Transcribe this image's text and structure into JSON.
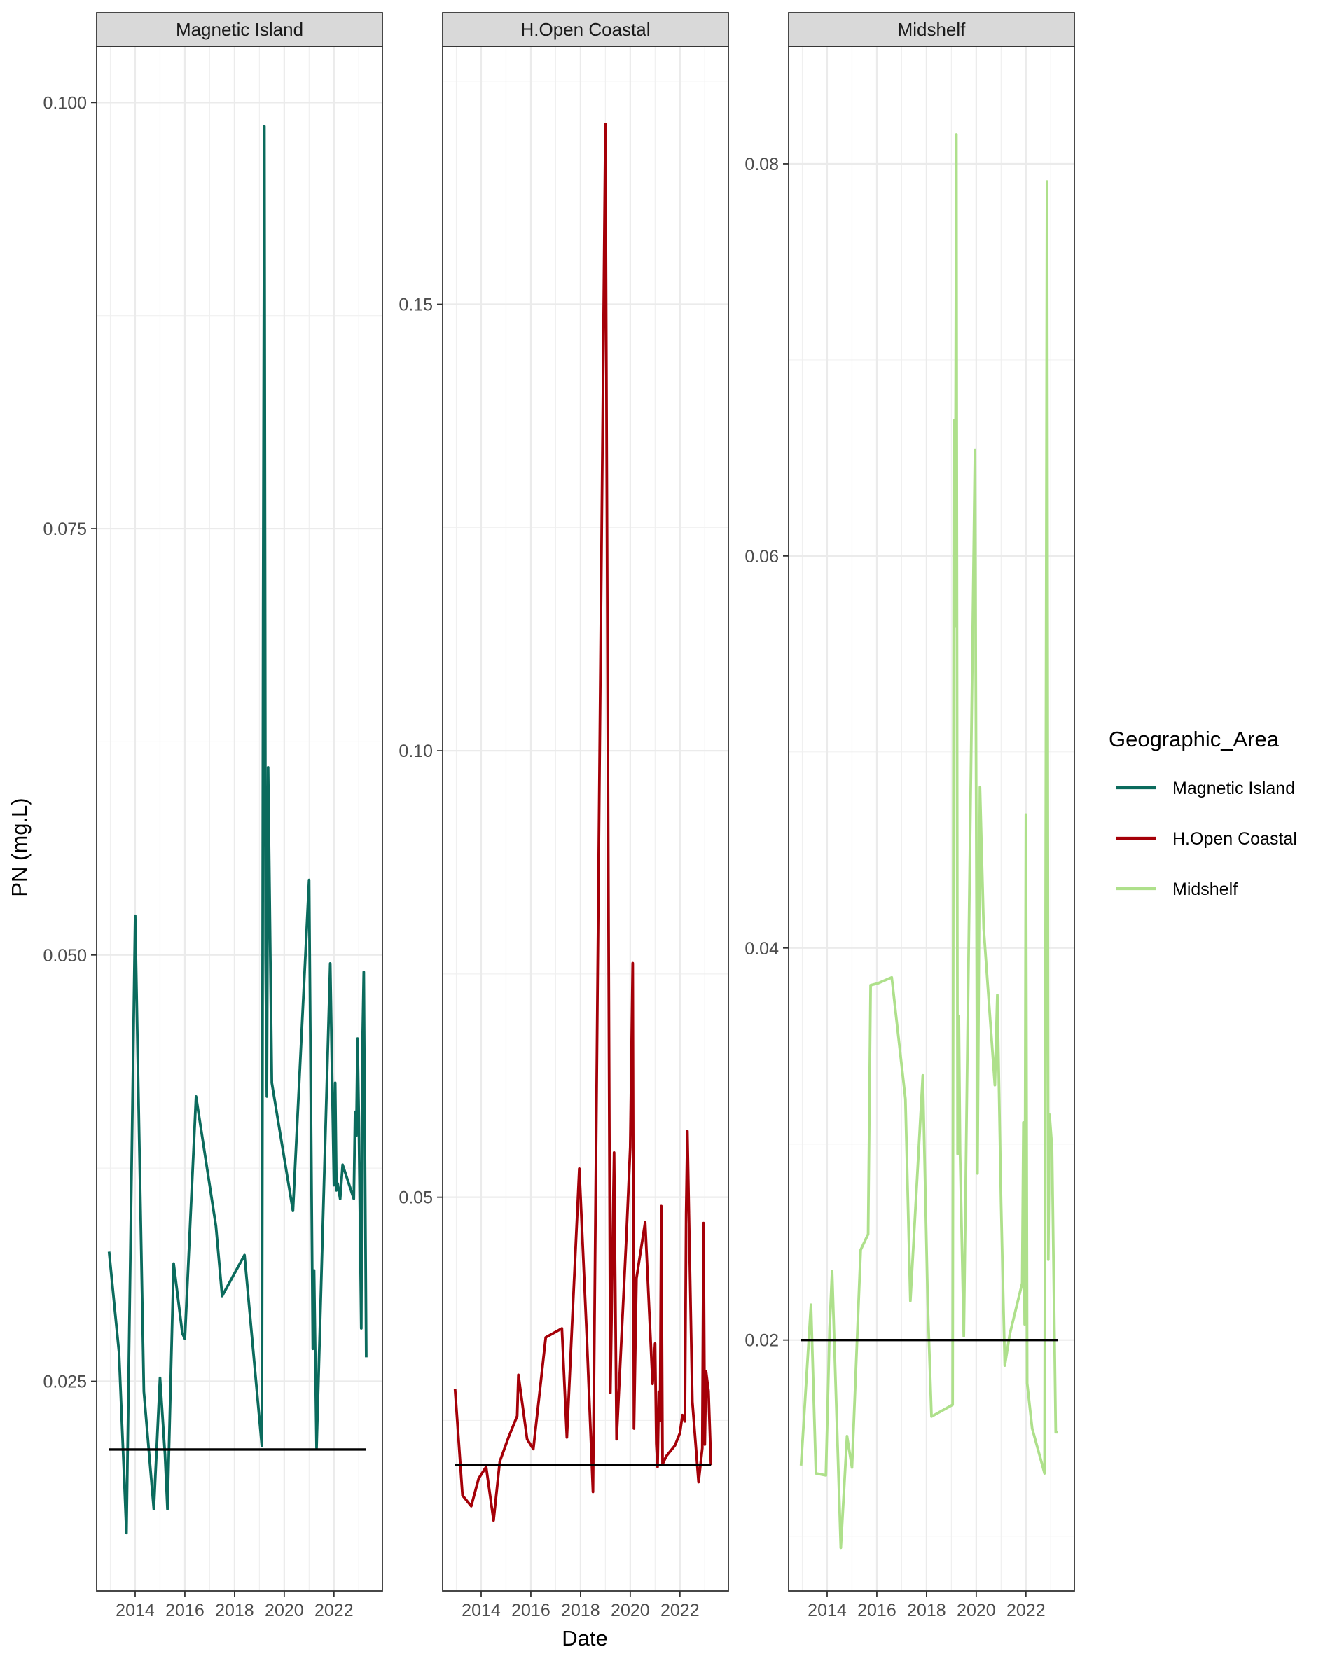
{
  "chart_data": {
    "type": "line",
    "xlabel": "Date",
    "ylabel": "PN (mg.L)",
    "legend": {
      "title": "Geographic_Area",
      "position": "right",
      "entries": [
        {
          "label": "Magnetic Island",
          "color": "#0B6B5D"
        },
        {
          "label": "H.Open Coastal",
          "color": "#A50008"
        },
        {
          "label": "Midshelf",
          "color": "#AEE08B"
        }
      ]
    },
    "grid": true,
    "panels": [
      {
        "strip": "Magnetic Island",
        "color": "#0B6B5D",
        "xlim": [
          2012.45,
          2023.95
        ],
        "ylim": [
          0.0127,
          0.1033
        ],
        "xticks": [
          2014,
          2016,
          2018,
          2020,
          2022
        ],
        "yticks": [
          0.025,
          0.05,
          0.075,
          0.1
        ],
        "ytick_labels": [
          "0.025",
          "0.050",
          "0.075",
          "0.100"
        ],
        "threshold": 0.021,
        "x": [
          2012.95,
          2013.35,
          2013.65,
          2014.0,
          2014.35,
          2014.75,
          2015.0,
          2015.2,
          2015.3,
          2015.55,
          2015.9,
          2016.0,
          2016.45,
          2017.25,
          2017.5,
          2018.4,
          2019.1,
          2019.15,
          2019.2,
          2019.25,
          2019.3,
          2019.35,
          2019.5,
          2020.35,
          2021.0,
          2021.15,
          2021.2,
          2021.3,
          2021.85,
          2022.0,
          2022.05,
          2022.1,
          2022.15,
          2022.25,
          2022.35,
          2022.8,
          2022.85,
          2022.9,
          2022.95,
          2023.0,
          2023.1,
          2023.15,
          2023.2,
          2023.3
        ],
        "y": [
          0.0326,
          0.0267,
          0.0161,
          0.0523,
          0.0244,
          0.0175,
          0.0252,
          0.0207,
          0.0175,
          0.0319,
          0.0278,
          0.0275,
          0.0417,
          0.0341,
          0.03,
          0.0324,
          0.0212,
          0.07,
          0.0986,
          0.05,
          0.0417,
          0.061,
          0.0425,
          0.035,
          0.0544,
          0.0269,
          0.0315,
          0.0211,
          0.0495,
          0.0365,
          0.0425,
          0.0362,
          0.0366,
          0.0357,
          0.0377,
          0.0357,
          0.0408,
          0.0394,
          0.0451,
          0.0405,
          0.0281,
          0.0448,
          0.049,
          0.0264
        ]
      },
      {
        "strip": "H.Open Coastal",
        "color": "#A50008",
        "xlim": [
          2012.45,
          2023.95
        ],
        "ylim": [
          0.0059,
          0.1789
        ],
        "xticks": [
          2014,
          2016,
          2018,
          2020,
          2022
        ],
        "yticks": [
          0.05,
          0.1,
          0.15
        ],
        "ytick_labels": [
          "0.05",
          "0.10",
          "0.15"
        ],
        "threshold": 0.02,
        "x": [
          2012.95,
          2013.25,
          2013.6,
          2013.9,
          2014.2,
          2014.5,
          2014.75,
          2015.1,
          2015.45,
          2015.5,
          2015.85,
          2016.1,
          2016.6,
          2017.25,
          2017.45,
          2017.95,
          2018.25,
          2018.5,
          2019.0,
          2019.1,
          2019.2,
          2019.35,
          2019.45,
          2019.85,
          2020.0,
          2020.1,
          2020.15,
          2020.25,
          2020.6,
          2020.9,
          2021.0,
          2021.05,
          2021.1,
          2021.15,
          2021.2,
          2021.25,
          2021.3,
          2021.45,
          2021.8,
          2022.0,
          2022.1,
          2022.2,
          2022.25,
          2022.3,
          2022.5,
          2022.75,
          2022.9,
          2022.95,
          2023.0,
          2023.05,
          2023.15,
          2023.25
        ],
        "y": [
          0.0285,
          0.0166,
          0.0154,
          0.0185,
          0.0198,
          0.0138,
          0.0204,
          0.0231,
          0.0255,
          0.0301,
          0.0229,
          0.0218,
          0.0343,
          0.0353,
          0.0231,
          0.0532,
          0.0345,
          0.017,
          0.1702,
          0.1002,
          0.0281,
          0.055,
          0.0229,
          0.0459,
          0.0556,
          0.0762,
          0.0241,
          0.0409,
          0.0472,
          0.0291,
          0.0336,
          0.0224,
          0.0198,
          0.0282,
          0.025,
          0.049,
          0.0201,
          0.021,
          0.0222,
          0.0236,
          0.0256,
          0.0249,
          0.0481,
          0.0574,
          0.0271,
          0.0181,
          0.0219,
          0.0471,
          0.0223,
          0.0305,
          0.0283,
          0.02
        ]
      },
      {
        "strip": "Midshelf",
        "color": "#AEE08B",
        "xlim": [
          2012.45,
          2023.95
        ],
        "ylim": [
          0.0072,
          0.086
        ],
        "xticks": [
          2014,
          2016,
          2018,
          2020,
          2022
        ],
        "yticks": [
          0.02,
          0.04,
          0.06,
          0.08
        ],
        "ytick_labels": [
          "0.02",
          "0.04",
          "0.06",
          "0.08"
        ],
        "threshold": 0.02,
        "x": [
          2012.95,
          2013.35,
          2013.55,
          2013.95,
          2014.1,
          2014.2,
          2014.55,
          2014.8,
          2015.0,
          2015.35,
          2015.5,
          2015.65,
          2015.75,
          2016.05,
          2016.6,
          2017.15,
          2017.35,
          2017.85,
          2018.05,
          2018.2,
          2019.05,
          2019.1,
          2019.15,
          2019.2,
          2019.25,
          2019.3,
          2019.35,
          2019.5,
          2019.95,
          2020.05,
          2020.15,
          2020.3,
          2020.75,
          2020.85,
          2021.0,
          2021.15,
          2021.35,
          2021.85,
          2021.9,
          2021.95,
          2022.0,
          2022.05,
          2022.25,
          2022.75,
          2022.85,
          2022.9,
          2022.95,
          2023.05,
          2023.2,
          2023.3
        ],
        "y": [
          0.0136,
          0.0218,
          0.0132,
          0.0131,
          0.0206,
          0.0235,
          0.0094,
          0.0151,
          0.0135,
          0.0246,
          0.025,
          0.0254,
          0.0381,
          0.0382,
          0.0385,
          0.0323,
          0.022,
          0.0335,
          0.0218,
          0.0161,
          0.0167,
          0.0669,
          0.0564,
          0.0815,
          0.0295,
          0.0365,
          0.0295,
          0.0202,
          0.0654,
          0.0285,
          0.0482,
          0.041,
          0.033,
          0.0376,
          0.027,
          0.0187,
          0.0203,
          0.0229,
          0.0311,
          0.0208,
          0.0468,
          0.0178,
          0.0155,
          0.0132,
          0.0791,
          0.0241,
          0.0315,
          0.0298,
          0.0153,
          0.0153
        ]
      }
    ]
  }
}
